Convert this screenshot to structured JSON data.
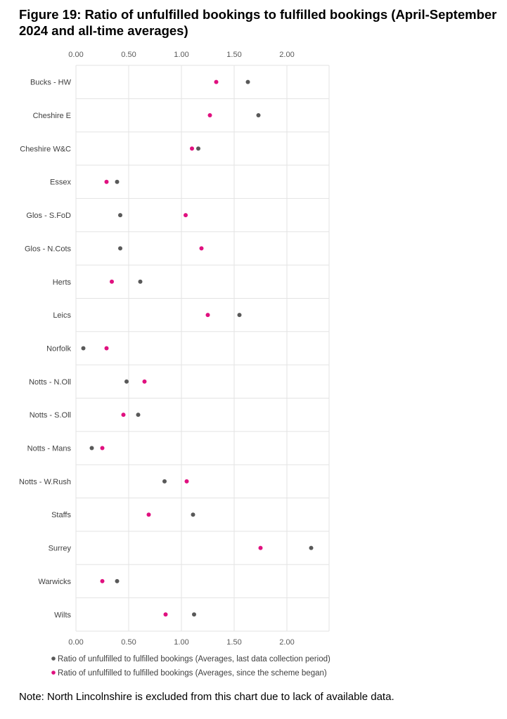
{
  "title": "Figure 19: Ratio of unfulfilled bookings to fulfilled bookings (April-September 2024 and all-time averages)",
  "note": "Note: North Lincolnshire is excluded from this chart due to lack of available data.",
  "chart_data": {
    "type": "scatter",
    "orientation": "horizontal-dot-plot",
    "title": "Figure 19: Ratio of unfulfilled bookings to fulfilled bookings (April-September 2024 and all-time averages)",
    "xlim": [
      0,
      2.4
    ],
    "xticks": [
      "0.00",
      "0.50",
      "1.00",
      "1.50",
      "2.00"
    ],
    "xtick_values": [
      0,
      0.5,
      1,
      1.5,
      2
    ],
    "grid": true,
    "legend_position": "bottom",
    "categories": [
      "Bucks - HW",
      "Cheshire E",
      "Cheshire W&C",
      "Essex",
      "Glos - S.FoD",
      "Glos - N.Cots",
      "Herts",
      "Leics",
      "Norfolk",
      "Notts - N.Oll",
      "Notts - S.Oll",
      "Notts - Mans",
      "Notts - W.Rush",
      "Staffs",
      "Surrey",
      "Warwicks",
      "Wilts"
    ],
    "series": [
      {
        "name": "Ratio of unfulfilled to fulfilled bookings (Averages, last data collection period)",
        "color": "#595959",
        "values": [
          1.63,
          1.73,
          1.16,
          0.39,
          0.42,
          0.42,
          0.61,
          1.55,
          0.07,
          0.48,
          0.59,
          0.15,
          0.84,
          1.11,
          2.23,
          0.39,
          1.12
        ]
      },
      {
        "name": "Ratio of unfulfilled to fulfilled bookings (Averages, since the scheme began)",
        "color": "#e0107f",
        "values": [
          1.33,
          1.27,
          1.1,
          0.29,
          1.04,
          1.19,
          0.34,
          1.25,
          0.29,
          0.65,
          0.45,
          0.25,
          1.05,
          0.69,
          1.75,
          0.25,
          0.85
        ]
      }
    ]
  }
}
